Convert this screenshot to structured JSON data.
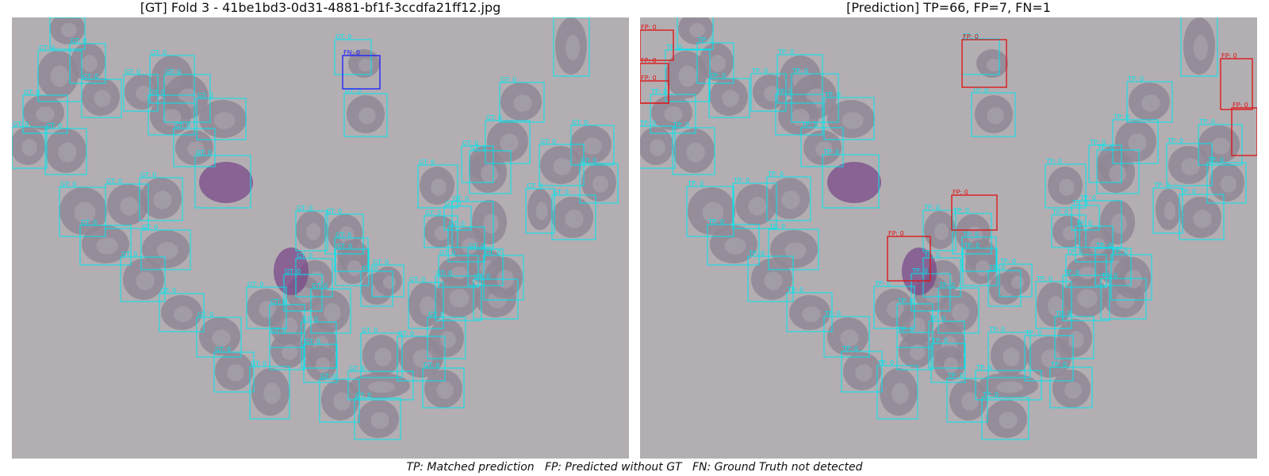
{
  "left_panel": {
    "title": "[GT] Fold 3 - 41be1bd3-0d31-4881-bf1f-3ccdfa21ff12.jpg",
    "gt_label": "GT: 0",
    "fn_label": "FN: 0"
  },
  "right_panel": {
    "title": "[Prediction] TP=66, FP=7, FN=1",
    "tp_label": "TP: 0",
    "fp_label": "FP: 0"
  },
  "caption": "TP: Matched prediction   FP: Predicted without GT   FN: Ground Truth not detected",
  "colors": {
    "gt": "#00e5ee",
    "tp": "#00e5ee",
    "fp": "#e01010",
    "fn": "#1a1aff",
    "background": "#b3aeb2",
    "cell": "#8f8794",
    "cell_center": "#a8a2ac",
    "parasite": "#7a4a8a"
  },
  "counts": {
    "TP": 66,
    "FP": 7,
    "FN": 1
  }
}
